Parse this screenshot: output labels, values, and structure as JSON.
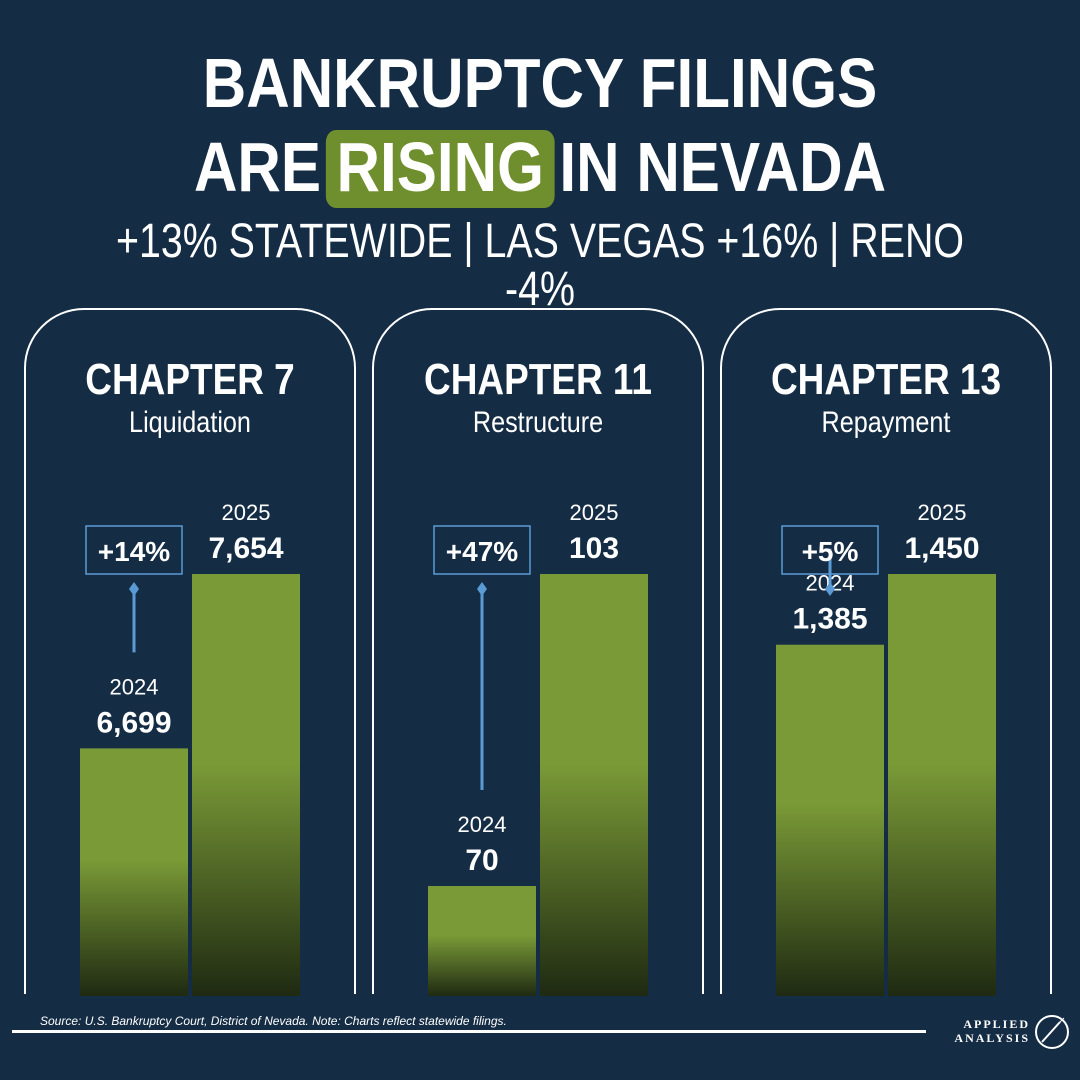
{
  "title": {
    "line1": "BANKRUPTCY FILINGS",
    "line2_pre": "ARE",
    "line2_highlight": "RISING",
    "line2_post": "IN NEVADA",
    "subtitle": "+13% STATEWIDE | LAS VEGAS +16% | RENO -4%"
  },
  "colors": {
    "background": "#152c45",
    "highlight": "#6f8f2e",
    "bar_top": "#7a9a37",
    "bar_bottom": "#1f2a12",
    "arrow": "#5b9bd5"
  },
  "chart_data": [
    {
      "type": "bar",
      "title": "CHAPTER 7",
      "subtitle": "Liquidation",
      "categories": [
        "2024",
        "2025"
      ],
      "values": [
        6699,
        7654
      ],
      "value_labels": [
        "6,699",
        "7,654"
      ],
      "change_label": "+14%"
    },
    {
      "type": "bar",
      "title": "CHAPTER 11",
      "subtitle": "Restructure",
      "categories": [
        "2024",
        "2025"
      ],
      "values": [
        70,
        103
      ],
      "value_labels": [
        "70",
        "103"
      ],
      "change_label": "+47%"
    },
    {
      "type": "bar",
      "title": "CHAPTER 13",
      "subtitle": "Repayment",
      "categories": [
        "2024",
        "2025"
      ],
      "values": [
        1385,
        1450
      ],
      "value_labels": [
        "1,385",
        "1,450"
      ],
      "change_label": "+5%"
    }
  ],
  "footer": {
    "source": "Source: U.S. Bankruptcy Court, District of Nevada. Note: Charts reflect statewide filings.",
    "logo_line1": "APPLIED",
    "logo_line2": "ANALYSIS"
  }
}
